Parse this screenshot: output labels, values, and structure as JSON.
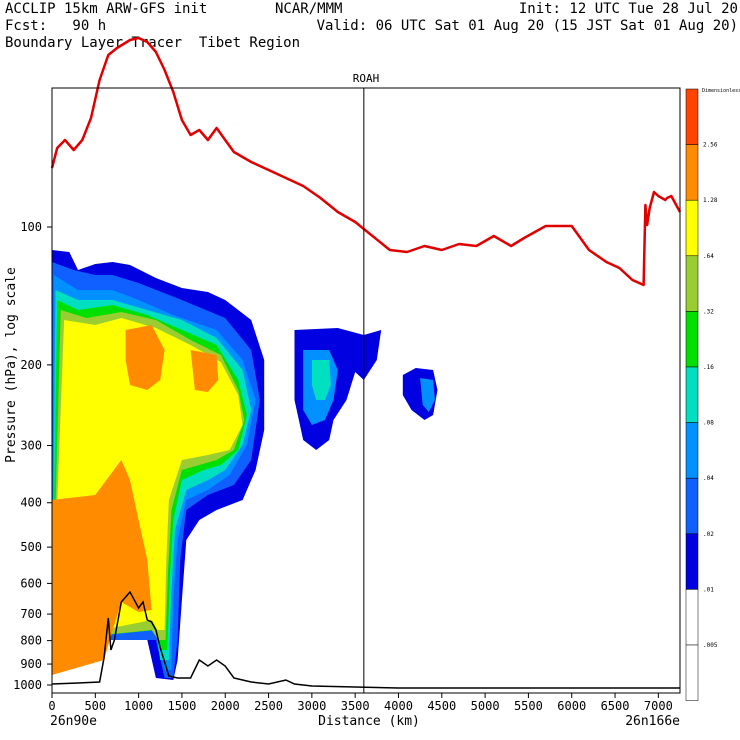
{
  "header": {
    "line1_left": "ACCLIP 15km ARW-GFS init",
    "line1_center": "NCAR/MMM",
    "line1_right": "Init: 12 UTC Tue 28 Jul 20",
    "line2_left": "Fcst:   90 h",
    "line2_right": "Valid: 06 UTC Sat 01 Aug 20 (15 JST Sat 01 Aug 20)",
    "line3_left": "Boundary Layer Tracer  Tibet Region"
  },
  "chart_data": {
    "type": "heatmap",
    "title": "ROAH",
    "xlabel": "Distance (km)",
    "ylabel": "Pressure (hPa), log scale",
    "x_start_label": "26n90e",
    "x_end_label": "26n166e",
    "xlim": [
      0,
      7250
    ],
    "ylim_hpa": [
      1050,
      50
    ],
    "x_ticks": [
      0,
      500,
      1000,
      1500,
      2000,
      2500,
      3000,
      3500,
      4000,
      4500,
      5000,
      5500,
      6000,
      6500,
      7000
    ],
    "y_ticks": [
      100,
      200,
      300,
      400,
      500,
      600,
      700,
      800,
      900,
      1000
    ],
    "marker_line_km": 3600,
    "colorbar": {
      "label": "Dimensionless",
      "levels": [
        "2.56",
        "1.28",
        ".64",
        ".32",
        ".16",
        ".08",
        ".04",
        ".02",
        ".01",
        ".005"
      ],
      "colors": [
        "#ff4500",
        "#ff8c00",
        "#ffff00",
        "#9acd32",
        "#00e000",
        "#00e0c0",
        "#0090ff",
        "#1060ff",
        "#0000e0",
        "#ffffff",
        "#ffffff"
      ]
    },
    "tropopause_line": {
      "color": "#e00000",
      "points": [
        [
          0,
          168
        ],
        [
          60,
          148
        ],
        [
          150,
          140
        ],
        [
          250,
          150
        ],
        [
          350,
          140
        ],
        [
          450,
          118
        ],
        [
          550,
          80
        ],
        [
          650,
          55
        ],
        [
          750,
          48
        ],
        [
          900,
          40
        ],
        [
          1000,
          38
        ],
        [
          1100,
          42
        ],
        [
          1200,
          52
        ],
        [
          1300,
          70
        ],
        [
          1400,
          92
        ],
        [
          1500,
          120
        ],
        [
          1600,
          135
        ],
        [
          1700,
          130
        ],
        [
          1800,
          140
        ],
        [
          1900,
          128
        ],
        [
          2000,
          140
        ],
        [
          2100,
          152
        ],
        [
          2300,
          162
        ],
        [
          2500,
          170
        ],
        [
          2700,
          178
        ],
        [
          2900,
          186
        ],
        [
          3100,
          198
        ],
        [
          3300,
          212
        ],
        [
          3500,
          222
        ],
        [
          3700,
          236
        ],
        [
          3900,
          250
        ],
        [
          4100,
          252
        ],
        [
          4300,
          246
        ],
        [
          4500,
          250
        ],
        [
          4700,
          244
        ],
        [
          4900,
          246
        ],
        [
          5100,
          236
        ],
        [
          5300,
          246
        ],
        [
          5450,
          238
        ],
        [
          5700,
          226
        ],
        [
          6000,
          226
        ],
        [
          6200,
          250
        ],
        [
          6400,
          262
        ],
        [
          6550,
          268
        ],
        [
          6700,
          280
        ],
        [
          6830,
          285
        ],
        [
          6850,
          205
        ],
        [
          6870,
          225
        ],
        [
          6900,
          208
        ],
        [
          6950,
          192
        ],
        [
          7000,
          196
        ],
        [
          7080,
          200
        ],
        [
          7100,
          198
        ],
        [
          7150,
          196
        ],
        [
          7250,
          212
        ]
      ]
    },
    "terrain_line": {
      "color": "#000000",
      "points": [
        [
          0,
          684
        ],
        [
          300,
          683
        ],
        [
          550,
          682
        ],
        [
          600,
          658
        ],
        [
          650,
          618
        ],
        [
          680,
          650
        ],
        [
          720,
          640
        ],
        [
          800,
          602
        ],
        [
          900,
          592
        ],
        [
          1000,
          608
        ],
        [
          1050,
          602
        ],
        [
          1100,
          620
        ],
        [
          1150,
          622
        ],
        [
          1200,
          630
        ],
        [
          1250,
          648
        ],
        [
          1350,
          676
        ],
        [
          1450,
          678
        ],
        [
          1600,
          678
        ],
        [
          1700,
          660
        ],
        [
          1800,
          666
        ],
        [
          1900,
          660
        ],
        [
          2000,
          666
        ],
        [
          2100,
          678
        ],
        [
          2200,
          680
        ],
        [
          2300,
          682
        ],
        [
          2500,
          684
        ],
        [
          2700,
          680
        ],
        [
          2800,
          684
        ],
        [
          3000,
          686
        ],
        [
          4000,
          688
        ],
        [
          5000,
          688
        ],
        [
          5600,
          688
        ],
        [
          7250,
          688
        ]
      ]
    },
    "regions": [
      {
        "level": ".01",
        "color": "#0000e0",
        "points": [
          [
            0,
            250
          ],
          [
            200,
            252
          ],
          [
            300,
            270
          ],
          [
            500,
            264
          ],
          [
            700,
            262
          ],
          [
            900,
            265
          ],
          [
            1200,
            278
          ],
          [
            1500,
            288
          ],
          [
            1800,
            292
          ],
          [
            2000,
            300
          ],
          [
            2300,
            320
          ],
          [
            2450,
            360
          ],
          [
            2450,
            430
          ],
          [
            2350,
            470
          ],
          [
            2200,
            500
          ],
          [
            1900,
            510
          ],
          [
            1700,
            520
          ],
          [
            1550,
            540
          ],
          [
            1500,
            600
          ],
          [
            1450,
            660
          ],
          [
            1400,
            680
          ],
          [
            1200,
            678
          ],
          [
            1100,
            640
          ],
          [
            0,
            640
          ]
        ]
      },
      {
        "level": ".02",
        "color": "#1060ff",
        "points": [
          [
            0,
            262
          ],
          [
            250,
            270
          ],
          [
            500,
            275
          ],
          [
            700,
            275
          ],
          [
            1000,
            283
          ],
          [
            1500,
            300
          ],
          [
            2000,
            318
          ],
          [
            2300,
            350
          ],
          [
            2400,
            400
          ],
          [
            2300,
            460
          ],
          [
            2100,
            485
          ],
          [
            1800,
            495
          ],
          [
            1550,
            510
          ],
          [
            1480,
            560
          ],
          [
            1450,
            640
          ],
          [
            1400,
            678
          ],
          [
            1300,
            678
          ],
          [
            1200,
            640
          ],
          [
            0,
            640
          ]
        ]
      },
      {
        "level": ".04",
        "color": "#0090ff",
        "points": [
          [
            20,
            275
          ],
          [
            300,
            290
          ],
          [
            700,
            290
          ],
          [
            1000,
            300
          ],
          [
            1400,
            315
          ],
          [
            1900,
            330
          ],
          [
            2200,
            360
          ],
          [
            2350,
            400
          ],
          [
            2250,
            445
          ],
          [
            2050,
            475
          ],
          [
            1800,
            490
          ],
          [
            1550,
            500
          ],
          [
            1450,
            540
          ],
          [
            1400,
            600
          ],
          [
            1380,
            670
          ],
          [
            1300,
            670
          ],
          [
            1200,
            630
          ],
          [
            0,
            640
          ]
        ]
      },
      {
        "level": ".08",
        "color": "#00e0c0",
        "points": [
          [
            40,
            290
          ],
          [
            300,
            300
          ],
          [
            700,
            300
          ],
          [
            1100,
            310
          ],
          [
            1500,
            320
          ],
          [
            1900,
            338
          ],
          [
            2200,
            370
          ],
          [
            2300,
            410
          ],
          [
            2200,
            445
          ],
          [
            2000,
            470
          ],
          [
            1800,
            480
          ],
          [
            1550,
            490
          ],
          [
            1420,
            530
          ],
          [
            1380,
            590
          ],
          [
            1350,
            660
          ],
          [
            1250,
            660
          ],
          [
            1200,
            630
          ],
          [
            0,
            640
          ]
        ]
      },
      {
        "level": ".16",
        "color": "#00e000",
        "points": [
          [
            60,
            300
          ],
          [
            300,
            310
          ],
          [
            700,
            305
          ],
          [
            1100,
            315
          ],
          [
            1500,
            330
          ],
          [
            1900,
            345
          ],
          [
            2150,
            380
          ],
          [
            2250,
            415
          ],
          [
            2150,
            450
          ],
          [
            1950,
            465
          ],
          [
            1750,
            470
          ],
          [
            1500,
            480
          ],
          [
            1400,
            520
          ],
          [
            1360,
            580
          ],
          [
            1330,
            650
          ],
          [
            1250,
            650
          ],
          [
            1200,
            630
          ],
          [
            0,
            640
          ]
        ]
      },
      {
        "level": ".32",
        "color": "#9acd32",
        "points": [
          [
            100,
            310
          ],
          [
            400,
            318
          ],
          [
            800,
            312
          ],
          [
            1200,
            320
          ],
          [
            1600,
            340
          ],
          [
            1950,
            355
          ],
          [
            2150,
            390
          ],
          [
            2220,
            420
          ],
          [
            2100,
            450
          ],
          [
            1900,
            460
          ],
          [
            1700,
            465
          ],
          [
            1500,
            470
          ],
          [
            1380,
            510
          ],
          [
            1340,
            570
          ],
          [
            1310,
            640
          ],
          [
            1230,
            640
          ],
          [
            1150,
            630
          ],
          [
            0,
            640
          ]
        ]
      },
      {
        "level": ".64",
        "color": "#ffff00",
        "points": [
          [
            140,
            320
          ],
          [
            500,
            325
          ],
          [
            800,
            318
          ],
          [
            1200,
            328
          ],
          [
            1600,
            345
          ],
          [
            1950,
            362
          ],
          [
            2150,
            395
          ],
          [
            2200,
            425
          ],
          [
            2050,
            450
          ],
          [
            1800,
            455
          ],
          [
            1500,
            460
          ],
          [
            1350,
            500
          ],
          [
            1320,
            560
          ],
          [
            1300,
            630
          ],
          [
            1220,
            630
          ],
          [
            1150,
            620
          ],
          [
            0,
            640
          ]
        ]
      },
      {
        "level": "1.28",
        "color": "#ff8c00",
        "points": [
          [
            0,
            500
          ],
          [
            500,
            495
          ],
          [
            800,
            460
          ],
          [
            900,
            480
          ],
          [
            1000,
            520
          ],
          [
            1100,
            560
          ],
          [
            1150,
            610
          ],
          [
            1000,
            612
          ],
          [
            800,
            602
          ],
          [
            700,
            630
          ],
          [
            600,
            660
          ],
          [
            0,
            675
          ]
        ]
      },
      {
        "level": "1.28",
        "color": "#ff8c00",
        "points": [
          [
            850,
            330
          ],
          [
            1150,
            325
          ],
          [
            1300,
            350
          ],
          [
            1250,
            380
          ],
          [
            1100,
            390
          ],
          [
            900,
            385
          ],
          [
            850,
            360
          ]
        ]
      },
      {
        "level": "1.28",
        "color": "#ff8c00",
        "points": [
          [
            1600,
            350
          ],
          [
            1900,
            355
          ],
          [
            1920,
            380
          ],
          [
            1800,
            392
          ],
          [
            1650,
            390
          ]
        ]
      },
      {
        "level": ".01",
        "color": "#0000e0",
        "points": [
          [
            2800,
            330
          ],
          [
            3300,
            328
          ],
          [
            3600,
            335
          ],
          [
            3800,
            330
          ],
          [
            3750,
            360
          ],
          [
            3600,
            380
          ],
          [
            3500,
            372
          ],
          [
            3400,
            400
          ],
          [
            3250,
            420
          ],
          [
            3200,
            440
          ],
          [
            3050,
            450
          ],
          [
            2900,
            440
          ],
          [
            2800,
            400
          ]
        ]
      },
      {
        "level": ".04",
        "color": "#0090ff",
        "points": [
          [
            2900,
            350
          ],
          [
            3200,
            350
          ],
          [
            3300,
            370
          ],
          [
            3250,
            400
          ],
          [
            3150,
            420
          ],
          [
            3000,
            425
          ],
          [
            2900,
            410
          ]
        ]
      },
      {
        "level": ".08",
        "color": "#00e0c0",
        "points": [
          [
            3000,
            360
          ],
          [
            3200,
            360
          ],
          [
            3220,
            385
          ],
          [
            3150,
            400
          ],
          [
            3050,
            400
          ],
          [
            3000,
            385
          ]
        ]
      },
      {
        "level": ".01",
        "color": "#0000e0",
        "points": [
          [
            4050,
            375
          ],
          [
            4200,
            368
          ],
          [
            4400,
            370
          ],
          [
            4450,
            390
          ],
          [
            4400,
            415
          ],
          [
            4300,
            420
          ],
          [
            4150,
            410
          ],
          [
            4050,
            395
          ]
        ]
      },
      {
        "level": ".04",
        "color": "#0090ff",
        "points": [
          [
            4250,
            378
          ],
          [
            4400,
            380
          ],
          [
            4420,
            400
          ],
          [
            4350,
            412
          ],
          [
            4280,
            405
          ]
        ]
      }
    ]
  }
}
